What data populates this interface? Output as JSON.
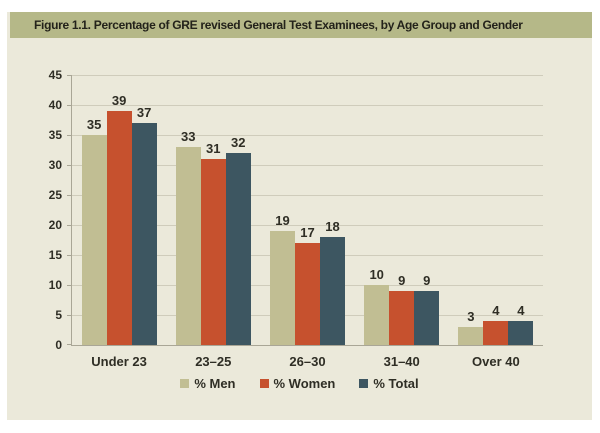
{
  "figure": {
    "title": "Figure 1.1. Percentage of GRE revised General Test Examinees, by Age Group and Gender"
  },
  "chart_data": {
    "type": "bar",
    "title": "Figure 1.1. Percentage of GRE revised General Test Examinees, by Age Group and Gender",
    "categories": [
      "Under 23",
      "23–25",
      "26–30",
      "31–40",
      "Over 40"
    ],
    "series": [
      {
        "name": "% Men",
        "color": "#c1be93",
        "values": [
          35,
          33,
          19,
          10,
          3
        ]
      },
      {
        "name": "% Women",
        "color": "#c6512e",
        "values": [
          39,
          31,
          17,
          9,
          4
        ]
      },
      {
        "name": "% Total",
        "color": "#3d5661",
        "values": [
          37,
          32,
          18,
          9,
          4
        ]
      }
    ],
    "xlabel": "",
    "ylabel": "",
    "ylim": [
      0,
      45
    ],
    "yticks": [
      0,
      5,
      10,
      15,
      20,
      25,
      30,
      35,
      40,
      45
    ],
    "grid": true,
    "value_labels": true,
    "legend_position": "bottom"
  },
  "colors": {
    "page_bg": "#ffffff",
    "panel_bg": "#ebe9da",
    "title_bar_bg": "#b5b888",
    "title_text": "#23221a",
    "gridline": "#cfccbb",
    "axis": "#a9a696",
    "label_text": "#2f2e25"
  }
}
